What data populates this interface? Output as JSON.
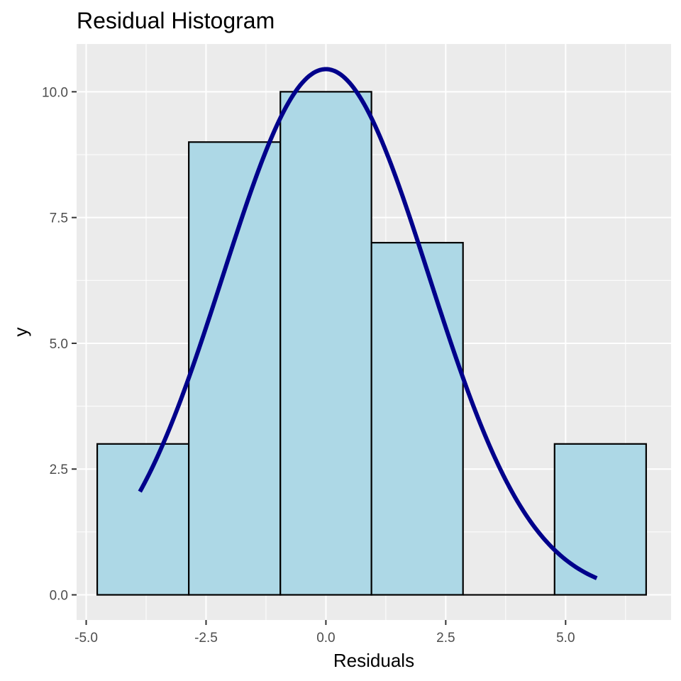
{
  "chart_data": {
    "type": "bar",
    "title": "Residual Histogram",
    "xlabel": "Residuals",
    "ylabel": "y",
    "xlim": [
      -5.2,
      7.2
    ],
    "ylim": [
      -0.5,
      10.95
    ],
    "x_ticks": [
      -5.0,
      -2.5,
      0.0,
      2.5,
      5.0
    ],
    "x_tick_labels": [
      "-5.0",
      "-2.5",
      "0.0",
      "2.5",
      "5.0"
    ],
    "y_ticks": [
      0.0,
      2.5,
      5.0,
      7.5,
      10.0
    ],
    "y_tick_labels": [
      "0.0",
      "2.5",
      "5.0",
      "7.5",
      "10.0"
    ],
    "bins": [
      {
        "x0": -4.77,
        "x1": -2.86,
        "count": 3
      },
      {
        "x0": -2.86,
        "x1": -0.95,
        "count": 9
      },
      {
        "x0": -0.95,
        "x1": 0.95,
        "count": 10
      },
      {
        "x0": 0.95,
        "x1": 2.86,
        "count": 7
      },
      {
        "x0": 2.86,
        "x1": 4.77,
        "count": 0
      },
      {
        "x0": 4.77,
        "x1": 6.68,
        "count": 3
      }
    ],
    "normal_curve": {
      "mean": 0.0,
      "peak": 10.45,
      "sd": 2.15,
      "x_range": [
        -3.88,
        5.65
      ]
    },
    "colors": {
      "bar_fill": "#add8e6",
      "bar_outline": "#000000",
      "curve": "#00008b",
      "panel_background": "#ebebeb",
      "grid": "#ffffff"
    },
    "grid": true,
    "legend": "none"
  }
}
